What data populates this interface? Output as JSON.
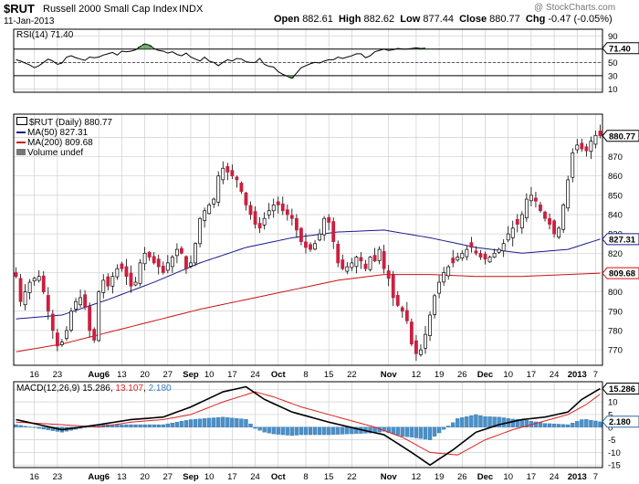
{
  "header": {
    "symbol": "$RUT",
    "name": "Russell 2000 Small Cap Index",
    "exchange": "INDX",
    "date": "11-Jan-2013",
    "watermark": "@ StockCharts.com",
    "open_label": "Open",
    "open": "882.61",
    "high_label": "High",
    "high": "882.62",
    "low_label": "Low",
    "low": "877.44",
    "close_label": "Close",
    "close": "880.77",
    "chg_label": "Chg",
    "chg": "-0.47 (-0.05%)"
  },
  "colors": {
    "up": "#ffffff",
    "down": "#cc1f3f",
    "ma50": "#1a1a8c",
    "ma200": "#cc1111",
    "macd": "#000000",
    "signal": "#dd2222",
    "hist": "#4a90c8",
    "rsi": "#000000",
    "grid": "#cfcfcf",
    "frame": "#000000"
  },
  "chart_data": [
    {
      "type": "line",
      "title": "RSI(14) 71.40",
      "legend_label": "RSI(14)",
      "last_value_text": "71.40",
      "ylim": [
        5,
        100
      ],
      "yticks": [
        10,
        30,
        50,
        70,
        90
      ],
      "reference_lines": [
        30,
        50,
        70
      ],
      "values": [
        54,
        52,
        49,
        46,
        42,
        45,
        50,
        55,
        52,
        47,
        49,
        58,
        60,
        57,
        55,
        53,
        58,
        57,
        58,
        61,
        63,
        65,
        61,
        67,
        66,
        67,
        69,
        74,
        78,
        76,
        71,
        68,
        67,
        64,
        66,
        62,
        60,
        64,
        58,
        55,
        52,
        58,
        52,
        50,
        45,
        50,
        54,
        52,
        56,
        55,
        51,
        50,
        50,
        56,
        47,
        44,
        43,
        36,
        32,
        29,
        26,
        34,
        42,
        45,
        48,
        50,
        49,
        52,
        54,
        54,
        58,
        56,
        58,
        60,
        63,
        63,
        57,
        60,
        66,
        68,
        70,
        68,
        69,
        71,
        70,
        70,
        71,
        72,
        71,
        71.4
      ]
    },
    {
      "type": "candlestick",
      "title": "$RUT (Daily) 880.77",
      "legend": [
        {
          "label": "$RUT (Daily) 880.77",
          "color": "#000000"
        },
        {
          "label": "MA(50) 827.31",
          "color": "#1a1a8c"
        },
        {
          "label": "MA(200) 809.68",
          "color": "#cc1111"
        },
        {
          "label": "Volume undef",
          "color": "#000000"
        }
      ],
      "ylim": [
        762,
        892
      ],
      "yticks": [
        770,
        780,
        790,
        800,
        810,
        820,
        830,
        840,
        850,
        860,
        870,
        880
      ],
      "last_price_tag": "880.77",
      "ma50_tag": "827.31",
      "ma200_tag": "809.68",
      "x_tick_labels": [
        {
          "label": "16",
          "index": 4,
          "bold": false
        },
        {
          "label": "23",
          "index": 9,
          "bold": false
        },
        {
          "label": "Aug6",
          "index": 18,
          "bold": true
        },
        {
          "label": "13",
          "index": 23,
          "bold": false
        },
        {
          "label": "20",
          "index": 28,
          "bold": false
        },
        {
          "label": "27",
          "index": 33,
          "bold": false
        },
        {
          "label": "Sep",
          "index": 38,
          "bold": true
        },
        {
          "label": "10",
          "index": 42,
          "bold": false
        },
        {
          "label": "17",
          "index": 47,
          "bold": false
        },
        {
          "label": "24",
          "index": 52,
          "bold": false
        },
        {
          "label": "Oct",
          "index": 57,
          "bold": true
        },
        {
          "label": "8",
          "index": 63,
          "bold": false
        },
        {
          "label": "15",
          "index": 68,
          "bold": false
        },
        {
          "label": "22",
          "index": 73,
          "bold": false
        },
        {
          "label": "Nov",
          "index": 81,
          "bold": true
        },
        {
          "label": "12",
          "index": 87,
          "bold": false
        },
        {
          "label": "19",
          "index": 92,
          "bold": false
        },
        {
          "label": "26",
          "index": 97,
          "bold": false
        },
        {
          "label": "Dec",
          "index": 102,
          "bold": true
        },
        {
          "label": "10",
          "index": 107,
          "bold": false
        },
        {
          "label": "17",
          "index": 112,
          "bold": false
        },
        {
          "label": "24",
          "index": 117,
          "bold": false
        },
        {
          "label": "2013",
          "index": 122,
          "bold": true
        },
        {
          "label": "7",
          "index": 126,
          "bold": false
        }
      ],
      "waypoints_close": [
        [
          0,
          808
        ],
        [
          1,
          795
        ],
        [
          2,
          800
        ],
        [
          3,
          805
        ],
        [
          4,
          807
        ],
        [
          5,
          808
        ],
        [
          6,
          800
        ],
        [
          7,
          790
        ],
        [
          8,
          780
        ],
        [
          9,
          772
        ],
        [
          10,
          774
        ],
        [
          11,
          780
        ],
        [
          12,
          790
        ],
        [
          13,
          795
        ],
        [
          14,
          797
        ],
        [
          15,
          792
        ],
        [
          16,
          780
        ],
        [
          17,
          775
        ],
        [
          18,
          800
        ],
        [
          19,
          806
        ],
        [
          20,
          803
        ],
        [
          21,
          808
        ],
        [
          22,
          812
        ],
        [
          23,
          812
        ],
        [
          24,
          808
        ],
        [
          25,
          803
        ],
        [
          26,
          805
        ],
        [
          27,
          815
        ],
        [
          28,
          820
        ],
        [
          29,
          818
        ],
        [
          30,
          815
        ],
        [
          31,
          813
        ],
        [
          32,
          810
        ],
        [
          33,
          815
        ],
        [
          34,
          818
        ],
        [
          35,
          822
        ],
        [
          36,
          820
        ],
        [
          37,
          812
        ],
        [
          38,
          815
        ],
        [
          39,
          825
        ],
        [
          40,
          838
        ],
        [
          41,
          842
        ],
        [
          42,
          845
        ],
        [
          43,
          848
        ],
        [
          44,
          860
        ],
        [
          45,
          864
        ],
        [
          46,
          862
        ],
        [
          47,
          860
        ],
        [
          48,
          858
        ],
        [
          49,
          852
        ],
        [
          50,
          845
        ],
        [
          51,
          840
        ],
        [
          52,
          835
        ],
        [
          53,
          833
        ],
        [
          54,
          838
        ],
        [
          55,
          842
        ],
        [
          56,
          845
        ],
        [
          57,
          845
        ],
        [
          58,
          842
        ],
        [
          59,
          840
        ],
        [
          60,
          838
        ],
        [
          61,
          832
        ],
        [
          62,
          826
        ],
        [
          63,
          823
        ],
        [
          64,
          822
        ],
        [
          65,
          825
        ],
        [
          66,
          830
        ],
        [
          67,
          838
        ],
        [
          68,
          836
        ],
        [
          69,
          826
        ],
        [
          70,
          815
        ],
        [
          71,
          812
        ],
        [
          72,
          813
        ],
        [
          73,
          815
        ],
        [
          74,
          818
        ],
        [
          75,
          816
        ],
        [
          76,
          812
        ],
        [
          77,
          818
        ],
        [
          78,
          816
        ],
        [
          79,
          822
        ],
        [
          80,
          812
        ],
        [
          81,
          807
        ],
        [
          82,
          797
        ],
        [
          83,
          793
        ],
        [
          84,
          790
        ],
        [
          85,
          785
        ],
        [
          86,
          773
        ],
        [
          87,
          768
        ],
        [
          88,
          770
        ],
        [
          89,
          778
        ],
        [
          90,
          788
        ],
        [
          91,
          798
        ],
        [
          92,
          805
        ],
        [
          93,
          810
        ],
        [
          94,
          813
        ],
        [
          95,
          815
        ],
        [
          96,
          818
        ],
        [
          97,
          820
        ],
        [
          98,
          822
        ],
        [
          99,
          823
        ],
        [
          100,
          820
        ],
        [
          101,
          818
        ],
        [
          102,
          817
        ],
        [
          103,
          818
        ],
        [
          104,
          820
        ],
        [
          105,
          822
        ],
        [
          106,
          825
        ],
        [
          107,
          830
        ],
        [
          108,
          833
        ],
        [
          109,
          835
        ],
        [
          110,
          840
        ],
        [
          111,
          848
        ],
        [
          112,
          850
        ],
        [
          113,
          847
        ],
        [
          114,
          842
        ],
        [
          115,
          838
        ],
        [
          116,
          835
        ],
        [
          117,
          830
        ],
        [
          118,
          833
        ],
        [
          119,
          845
        ],
        [
          120,
          858
        ],
        [
          121,
          872
        ],
        [
          122,
          876
        ],
        [
          123,
          874
        ],
        [
          124,
          873
        ],
        [
          125,
          878
        ],
        [
          126,
          881
        ],
        [
          127,
          880.77
        ]
      ],
      "ma50_waypoints": [
        [
          0,
          786
        ],
        [
          10,
          788
        ],
        [
          20,
          796
        ],
        [
          30,
          805
        ],
        [
          40,
          815
        ],
        [
          50,
          823
        ],
        [
          60,
          828
        ],
        [
          70,
          831
        ],
        [
          80,
          832
        ],
        [
          90,
          828
        ],
        [
          100,
          823
        ],
        [
          110,
          820
        ],
        [
          120,
          822
        ],
        [
          127,
          827.31
        ]
      ],
      "ma200_waypoints": [
        [
          0,
          769
        ],
        [
          10,
          773
        ],
        [
          20,
          779
        ],
        [
          30,
          785
        ],
        [
          40,
          791
        ],
        [
          50,
          796
        ],
        [
          60,
          801
        ],
        [
          70,
          806
        ],
        [
          80,
          809
        ],
        [
          90,
          809
        ],
        [
          100,
          808
        ],
        [
          110,
          808
        ],
        [
          120,
          809
        ],
        [
          127,
          809.68
        ]
      ]
    },
    {
      "type": "line",
      "title": "MACD(12,26,9) 15.286, 13.107, 2.180",
      "legend": {
        "name": "MACD(12,26,9)",
        "macd": "15.286",
        "signal": "13.107",
        "hist": "2.180"
      },
      "ylim": [
        -16,
        18
      ],
      "yticks": [
        -15,
        -10,
        -5,
        0,
        5,
        10,
        15
      ],
      "ytick_labels": [
        "-15",
        "-10",
        "-5",
        "0",
        "5",
        "10",
        "15"
      ],
      "macd_tag": "15.286",
      "hist_tag": "2.180",
      "macd_waypoints": [
        [
          0,
          3
        ],
        [
          10,
          -1
        ],
        [
          18,
          1
        ],
        [
          25,
          3
        ],
        [
          32,
          4
        ],
        [
          38,
          8
        ],
        [
          45,
          14
        ],
        [
          50,
          16
        ],
        [
          54,
          11
        ],
        [
          60,
          6
        ],
        [
          68,
          2
        ],
        [
          75,
          -1
        ],
        [
          80,
          -3
        ],
        [
          86,
          -10
        ],
        [
          90,
          -15
        ],
        [
          95,
          -9
        ],
        [
          100,
          -2
        ],
        [
          105,
          1
        ],
        [
          110,
          3
        ],
        [
          115,
          4
        ],
        [
          120,
          6
        ],
        [
          123,
          11
        ],
        [
          127,
          15.286
        ]
      ],
      "signal_waypoints": [
        [
          0,
          2
        ],
        [
          10,
          1
        ],
        [
          18,
          0
        ],
        [
          25,
          2
        ],
        [
          32,
          3
        ],
        [
          38,
          5
        ],
        [
          45,
          10
        ],
        [
          52,
          14
        ],
        [
          56,
          12
        ],
        [
          62,
          8
        ],
        [
          70,
          4
        ],
        [
          78,
          0
        ],
        [
          84,
          -4
        ],
        [
          90,
          -10
        ],
        [
          96,
          -11
        ],
        [
          102,
          -5
        ],
        [
          108,
          -1
        ],
        [
          114,
          2
        ],
        [
          120,
          5
        ],
        [
          124,
          9
        ],
        [
          127,
          13.107
        ]
      ]
    }
  ]
}
